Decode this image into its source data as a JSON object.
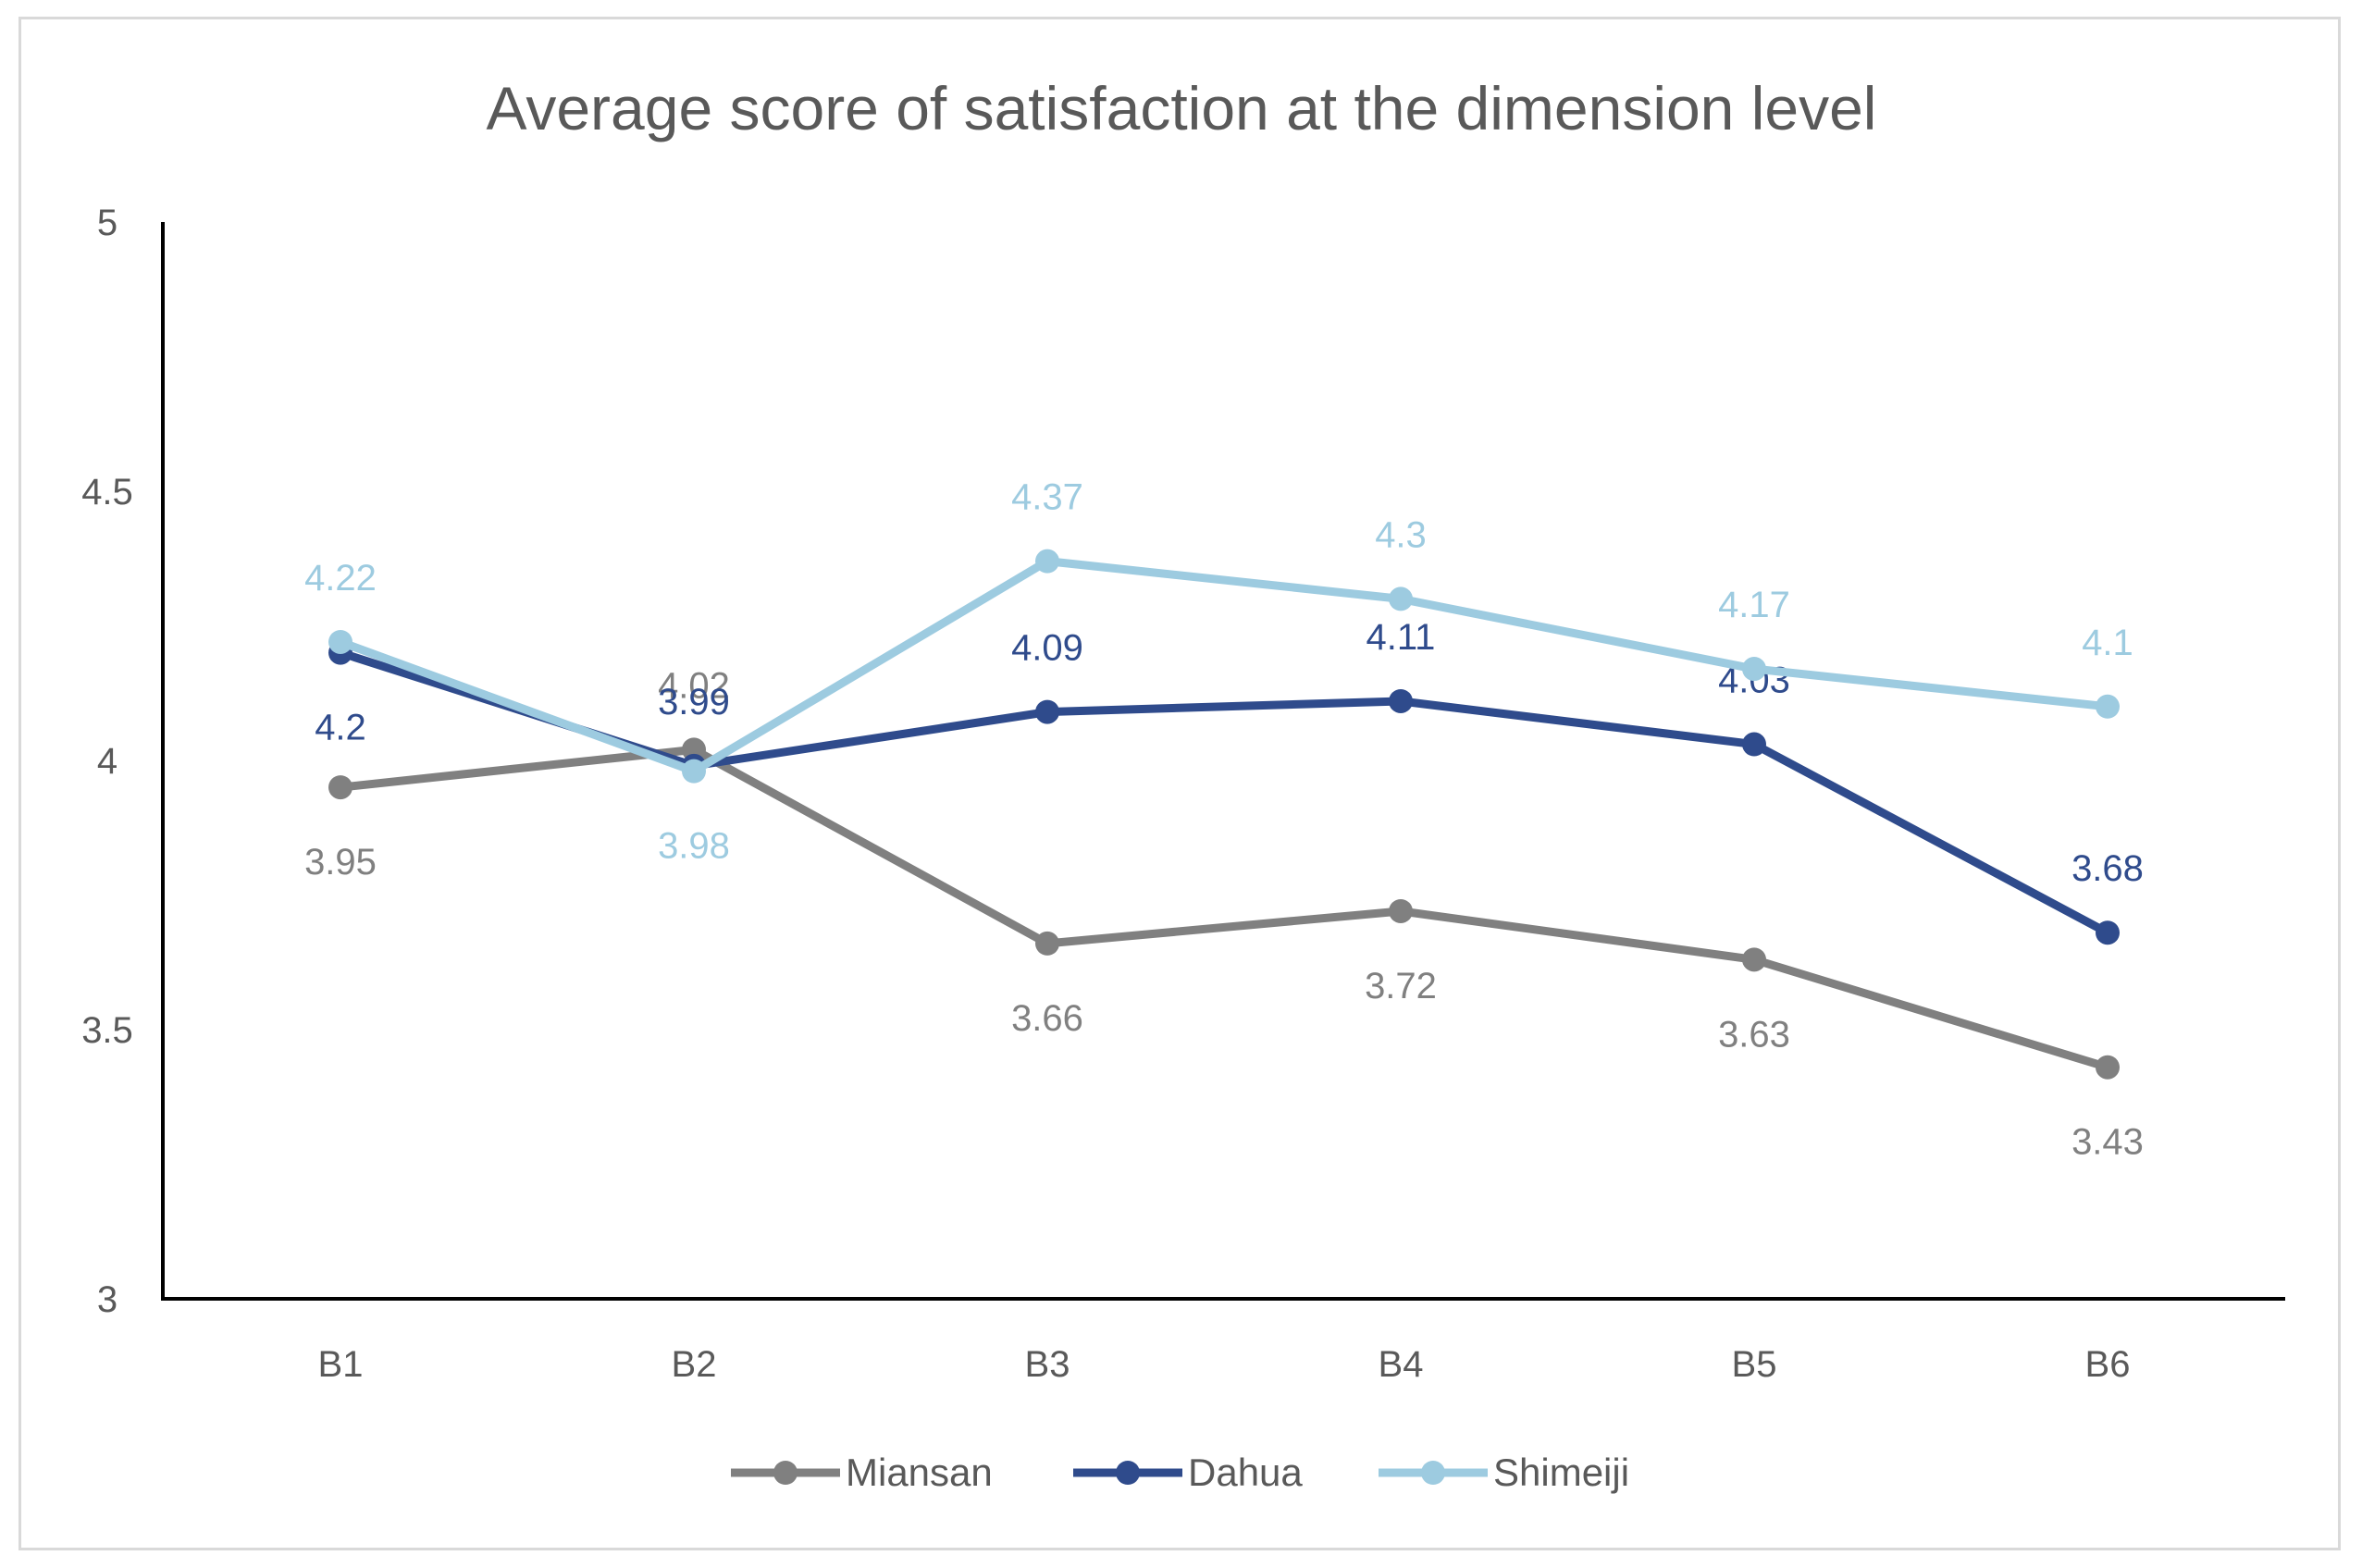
{
  "chart_data": {
    "type": "line",
    "title": "Average score of satisfaction at the dimension level",
    "xlabel": "",
    "ylabel": "",
    "categories": [
      "B1",
      "B2",
      "B3",
      "B4",
      "B5",
      "B6"
    ],
    "ylim": [
      3,
      5
    ],
    "yticks": [
      3,
      3.5,
      4,
      4.5,
      5
    ],
    "ytick_labels": [
      "3",
      "3.5",
      "4",
      "4.5",
      "5"
    ],
    "grid": false,
    "legend_position": "bottom",
    "series": [
      {
        "name": "Miansan",
        "color": "#808080",
        "values": [
          3.95,
          4.02,
          3.66,
          3.72,
          3.63,
          3.43
        ],
        "labels": [
          "3.95",
          "4.02",
          "3.66",
          "3.72",
          "3.63",
          "3.43"
        ],
        "label_positions": [
          "below",
          "above",
          "below",
          "below",
          "below",
          "below"
        ]
      },
      {
        "name": "Dahua",
        "color": "#2f4b8c",
        "values": [
          4.2,
          3.99,
          4.09,
          4.11,
          4.03,
          3.68
        ],
        "labels": [
          "4.2",
          "3.99",
          "4.09",
          "4.11",
          "4.03",
          "3.68"
        ],
        "label_positions": [
          "below",
          "above",
          "above",
          "above",
          "above",
          "above"
        ]
      },
      {
        "name": "Shimeiji",
        "color": "#9dcbe0",
        "values": [
          4.22,
          3.98,
          4.37,
          4.3,
          4.17,
          4.1
        ],
        "labels": [
          "4.22",
          "3.98",
          "4.37",
          "4.3",
          "4.17",
          "4.1"
        ],
        "label_positions": [
          "above",
          "below",
          "above",
          "above",
          "above",
          "above"
        ]
      }
    ]
  }
}
